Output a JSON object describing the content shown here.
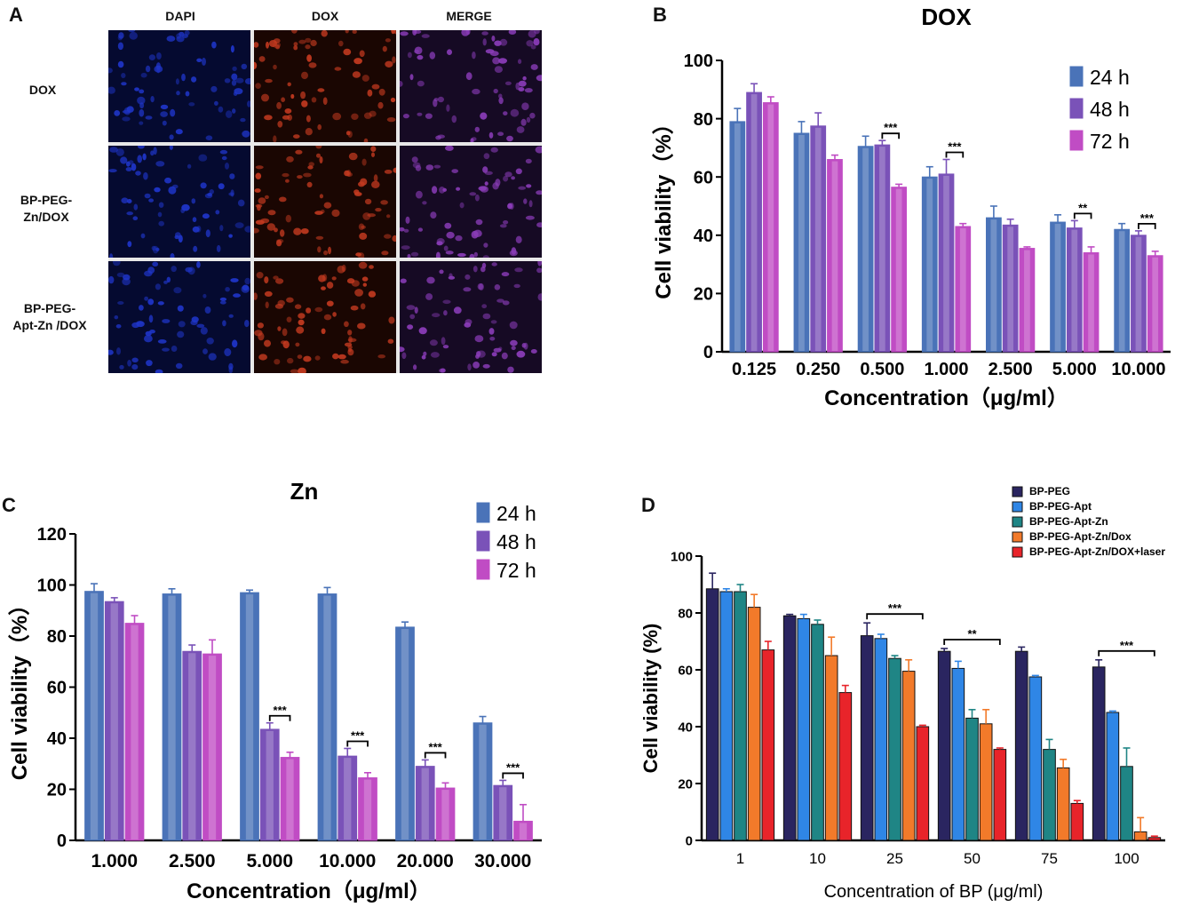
{
  "panels": {
    "a": {
      "letter": "A",
      "columns": [
        "DAPI",
        "DOX",
        "MERGE"
      ],
      "rows": [
        {
          "lines": [
            "DOX"
          ]
        },
        {
          "lines": [
            "BP-PEG-",
            "Zn/DOX"
          ]
        },
        {
          "lines": [
            "BP-PEG-",
            "Apt-Zn /DOX"
          ]
        }
      ]
    },
    "b": {
      "letter": "B"
    },
    "c": {
      "letter": "C"
    },
    "d": {
      "letter": "D"
    }
  },
  "colors": {
    "24h": "#4a73b8",
    "48h": "#7a52b8",
    "72h": "#c04cc4",
    "d_series": [
      "#2a2560",
      "#2f86e6",
      "#1f8585",
      "#f27a2a",
      "#e8242a"
    ],
    "dapi": "#1f35c8",
    "dox": "#c43a20",
    "merge": "#8a3cb8"
  },
  "chart_data": [
    {
      "id": "B",
      "type": "bar",
      "title": "DOX",
      "xlabel": "Concentration（μg/ml）",
      "ylabel": "Cell viability（%）",
      "ylim": [
        0,
        100
      ],
      "yticks": [
        "0",
        "20",
        "40",
        "60",
        "80",
        "100"
      ],
      "categories": [
        "0.125",
        "0.250",
        "0.500",
        "1.000",
        "2.500",
        "5.000",
        "10.000"
      ],
      "series": [
        {
          "name": "24 h",
          "values": [
            79,
            75,
            70.5,
            60,
            46,
            44.5,
            42
          ],
          "errors": [
            4.5,
            4,
            3.5,
            3.5,
            4,
            2.5,
            2
          ]
        },
        {
          "name": "48 h",
          "values": [
            89,
            77.5,
            71,
            61,
            43.5,
            42.5,
            40
          ],
          "errors": [
            3,
            4.5,
            1.5,
            5,
            2,
            2.5,
            1.5
          ]
        },
        {
          "name": "72 h",
          "values": [
            85.5,
            66,
            56.5,
            43,
            35.5,
            34,
            33
          ],
          "errors": [
            2,
            1.5,
            1,
            1,
            0.5,
            2,
            1.5
          ]
        }
      ],
      "significance": [
        {
          "category": 2,
          "label": "***"
        },
        {
          "category": 3,
          "label": "***"
        },
        {
          "category": 5,
          "label": "**"
        },
        {
          "category": 6,
          "label": "***"
        }
      ]
    },
    {
      "id": "C",
      "type": "bar",
      "title": "Zn",
      "xlabel": "Concentration（μg/ml）",
      "ylabel": "Cell viability（%）",
      "ylim": [
        0,
        120
      ],
      "yticks": [
        "0",
        "20",
        "40",
        "60",
        "80",
        "100",
        "120"
      ],
      "categories": [
        "1.000",
        "2.500",
        "5.000",
        "10.000",
        "20.000",
        "30.000"
      ],
      "series": [
        {
          "name": "24 h",
          "values": [
            97.5,
            96.5,
            97,
            96.5,
            83.5,
            46
          ],
          "errors": [
            3,
            2,
            1,
            2.5,
            2,
            2.5
          ]
        },
        {
          "name": "48 h",
          "values": [
            93.5,
            74,
            43.5,
            33,
            29,
            21.5
          ],
          "errors": [
            1.5,
            2.5,
            2.5,
            3,
            2.5,
            2
          ]
        },
        {
          "name": "72 h",
          "values": [
            85,
            73,
            32.5,
            24.5,
            20.5,
            7.5
          ],
          "errors": [
            3,
            5.5,
            2,
            2,
            2,
            6.5
          ]
        }
      ],
      "significance": [
        {
          "from": 2,
          "to": 2,
          "label": "***"
        },
        {
          "from": 3,
          "to": 3,
          "label": "***"
        },
        {
          "from": 4,
          "to": 4,
          "label": "***"
        },
        {
          "from": 5,
          "to": 5,
          "label": "***"
        }
      ]
    },
    {
      "id": "D",
      "type": "bar",
      "title": "",
      "xlabel": "Concentration of BP (μg/ml)",
      "ylabel": "Cell viability (%)",
      "ylim": [
        0,
        100
      ],
      "yticks": [
        "0",
        "20",
        "40",
        "60",
        "80",
        "100"
      ],
      "categories": [
        "1",
        "10",
        "25",
        "50",
        "75",
        "100"
      ],
      "series": [
        {
          "name": "BP-PEG",
          "values": [
            88.5,
            79,
            72,
            66.5,
            66.5,
            61
          ],
          "errors": [
            5.5,
            0.5,
            4.5,
            1,
            1.5,
            2.5
          ]
        },
        {
          "name": "BP-PEG-Apt",
          "values": [
            87.5,
            78,
            71,
            60.5,
            57.5,
            45
          ],
          "errors": [
            1,
            1.5,
            1.5,
            2.5,
            0.5,
            0.5
          ]
        },
        {
          "name": "BP-PEG-Apt-Zn",
          "values": [
            87.5,
            76,
            64,
            43,
            32,
            26
          ],
          "errors": [
            2.5,
            1.5,
            1,
            3,
            3.5,
            6.5
          ]
        },
        {
          "name": "BP-PEG-Apt-Zn/Dox",
          "values": [
            82,
            65,
            59.5,
            41,
            25.5,
            3
          ],
          "errors": [
            4.5,
            6.5,
            4,
            5,
            3,
            5
          ]
        },
        {
          "name": "BP-PEG-Apt-Zn/DOX+laser",
          "values": [
            67,
            52,
            40,
            32,
            13,
            1
          ],
          "errors": [
            3,
            2.5,
            0.5,
            0.5,
            1,
            0.5
          ]
        }
      ],
      "significance": [
        {
          "category": 2,
          "label": "***"
        },
        {
          "category": 3,
          "label": "**"
        },
        {
          "category": 5,
          "label": "***"
        }
      ]
    }
  ]
}
